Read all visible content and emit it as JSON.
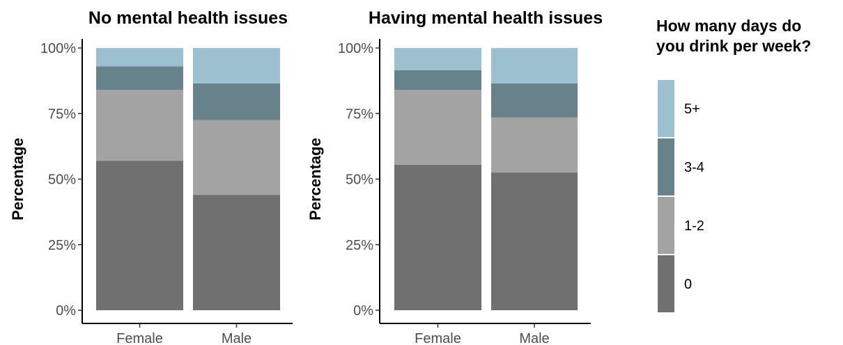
{
  "chart_data": [
    {
      "type": "bar",
      "stacked": true,
      "title": "No mental health issues",
      "xlabel": "",
      "ylabel": "Percentage",
      "ylim": [
        0,
        1
      ],
      "yticks": [
        "0%",
        "25%",
        "50%",
        "75%",
        "100%"
      ],
      "categories": [
        "Female",
        "Male"
      ],
      "series": [
        {
          "name": "0",
          "color": "#707070",
          "values": [
            0.57,
            0.44
          ]
        },
        {
          "name": "1-2",
          "color": "#a3a3a3",
          "values": [
            0.27,
            0.285
          ]
        },
        {
          "name": "3-4",
          "color": "#68828c",
          "values": [
            0.09,
            0.14
          ]
        },
        {
          "name": "5+",
          "color": "#9cc0cf",
          "values": [
            0.07,
            0.135
          ]
        }
      ]
    },
    {
      "type": "bar",
      "stacked": true,
      "title": "Having mental health issues",
      "xlabel": "",
      "ylabel": "Percentage",
      "ylim": [
        0,
        1
      ],
      "yticks": [
        "0%",
        "25%",
        "50%",
        "75%",
        "100%"
      ],
      "categories": [
        "Female",
        "Male"
      ],
      "series": [
        {
          "name": "0",
          "color": "#707070",
          "values": [
            0.555,
            0.525
          ]
        },
        {
          "name": "1-2",
          "color": "#a3a3a3",
          "values": [
            0.285,
            0.21
          ]
        },
        {
          "name": "3-4",
          "color": "#68828c",
          "values": [
            0.075,
            0.13
          ]
        },
        {
          "name": "5+",
          "color": "#9cc0cf",
          "values": [
            0.085,
            0.135
          ]
        }
      ]
    }
  ],
  "legend": {
    "title_line1": "How many days do",
    "title_line2": "you drink per week?",
    "items": [
      {
        "label": "5+",
        "color": "#9cc0cf"
      },
      {
        "label": "3-4",
        "color": "#68828c"
      },
      {
        "label": "1-2",
        "color": "#a3a3a3"
      },
      {
        "label": "0",
        "color": "#707070"
      }
    ]
  }
}
